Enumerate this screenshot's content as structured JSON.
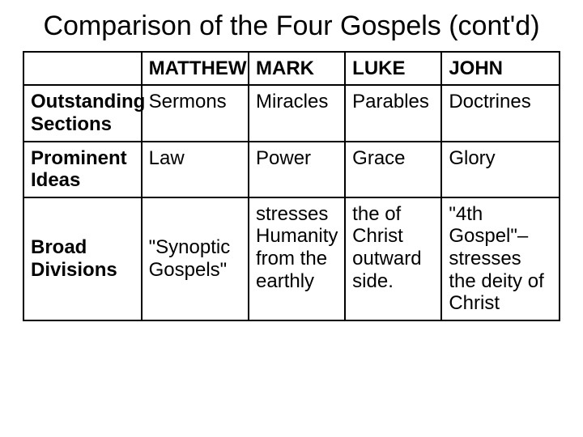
{
  "title": "Comparison of the Four Gospels (cont'd)",
  "table": {
    "headers": {
      "c1": "MATTHEW",
      "c2": "MARK",
      "c3": "LUKE",
      "c4": "JOHN"
    },
    "rows": [
      {
        "label": "Outstanding Sections",
        "c1": "Sermons",
        "c2": "Miracles",
        "c3": "Parables",
        "c4": "Doctrines"
      },
      {
        "label": "Prominent Ideas",
        "c1": "Law",
        "c2": "Power",
        "c3": "Grace",
        "c4": "Glory"
      },
      {
        "label": "Broad Divisions",
        "c1": "\"Synoptic Gospels\"",
        "c2": "stresses Humanity from the earthly",
        "c3": "the of Christ outward side.",
        "c4": "\"4th Gospel\"– stresses the deity of Christ"
      }
    ]
  }
}
